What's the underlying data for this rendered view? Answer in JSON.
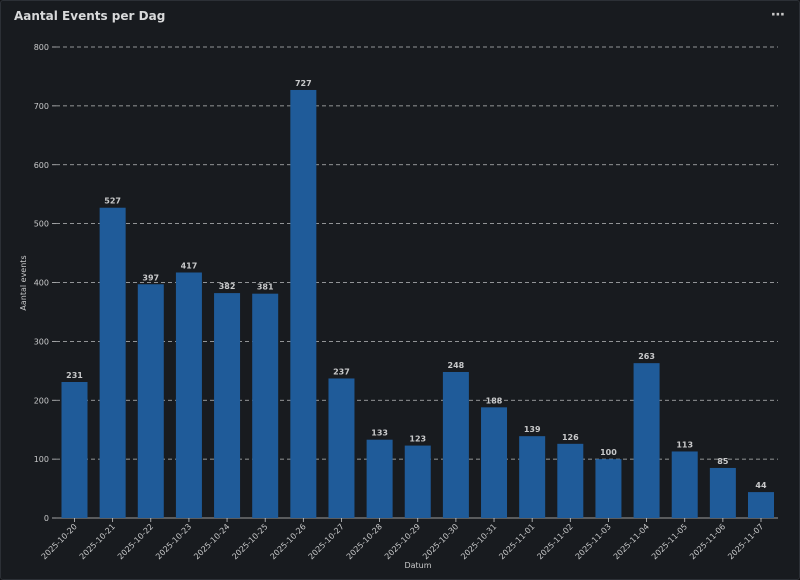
{
  "panel": {
    "title": "Aantal Events per Dag",
    "menu_icon": "more-horizontal-icon",
    "menu_glyph": "⋯"
  },
  "colors": {
    "bar": "#1f5b99",
    "grid": "#d8d9da",
    "text": "#c8c9ca"
  },
  "chart_data": {
    "type": "bar",
    "title": "Aantal Events per Dag",
    "xlabel": "Datum",
    "ylabel": "Aantal events",
    "ylim": [
      0,
      800
    ],
    "yticks": [
      0,
      100,
      200,
      300,
      400,
      500,
      600,
      700,
      800
    ],
    "grid": true,
    "categories": [
      "2025-10-20",
      "2025-10-21",
      "2025-10-22",
      "2025-10-23",
      "2025-10-24",
      "2025-10-25",
      "2025-10-26",
      "2025-10-27",
      "2025-10-28",
      "2025-10-29",
      "2025-10-30",
      "2025-10-31",
      "2025-11-01",
      "2025-11-02",
      "2025-11-03",
      "2025-11-04",
      "2025-11-05",
      "2025-11-06",
      "2025-11-07"
    ],
    "values": [
      231,
      527,
      397,
      417,
      382,
      381,
      727,
      237,
      133,
      123,
      248,
      188,
      139,
      126,
      100,
      263,
      113,
      85,
      44
    ]
  }
}
